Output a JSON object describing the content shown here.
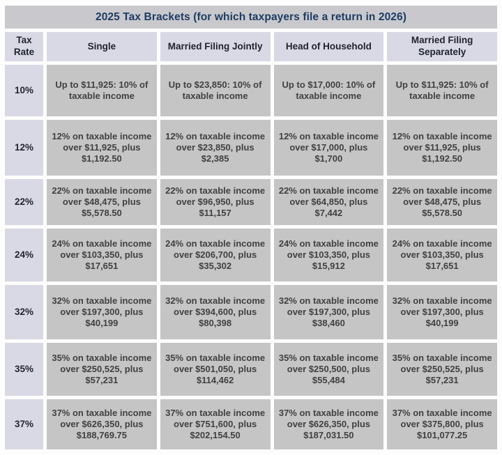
{
  "title": "2025 Tax Brackets (for which taxpayers file a return in 2026)",
  "colors": {
    "title_bar_bg": "#c9c9cd",
    "title_text": "#1d3c63",
    "header_bg": "#d9d9e6",
    "data_cell_bg": "#c5c5c6",
    "data_text": "#414141",
    "page_bg": "#fdfdfd"
  },
  "table": {
    "headers": [
      "Tax Rate",
      "Single",
      "Married Filing Jointly",
      "Head of Household",
      "Married Filing Separately"
    ],
    "rows": [
      {
        "rate": "10%",
        "cells": [
          "Up to $11,925: 10% of taxable income",
          "Up to $23,850: 10% of taxable income",
          "Up to $17,000: 10% of taxable income",
          "Up to $11,925: 10% of taxable income"
        ]
      },
      {
        "rate": "12%",
        "cells": [
          "12% on taxable income over $11,925, plus $1,192.50",
          "12% on taxable income over $23,850, plus $2,385",
          "12% on taxable income over $17,000, plus $1,700",
          "12% on taxable income over $11,925, plus $1,192.50"
        ]
      },
      {
        "rate": "22%",
        "cells": [
          "22% on taxable income over $48,475, plus $5,578.50",
          "22% on taxable income over $96,950, plus $11,157",
          "22% on taxable income over $64,850, plus $7,442",
          "22% on taxable income over $48,475, plus $5,578.50"
        ]
      },
      {
        "rate": "24%",
        "cells": [
          "24% on taxable income over $103,350, plus $17,651",
          "24% on taxable income over $206,700, plus $35,302",
          "24% on taxable income over $103,350, plus $15,912",
          "24% on taxable income over $103,350, plus $17,651"
        ]
      },
      {
        "rate": "32%",
        "cells": [
          "32% on taxable income over $197,300, plus $40,199",
          "32% on taxable income over $394,600, plus $80,398",
          "32% on taxable income over $197,300, plus $38,460",
          "32% on taxable income over $197,300, plus $40,199"
        ]
      },
      {
        "rate": "35%",
        "cells": [
          "35% on taxable income over $250,525, plus $57,231",
          "35% on taxable income over $501,050, plus $114,462",
          "35% on taxable income over $250,500, plus $55,484",
          "35% on taxable income over $250,525, plus $57,231"
        ]
      },
      {
        "rate": "37%",
        "cells": [
          "37% on taxable income over $626,350, plus $188,769.75",
          "37% on taxable income over $751,600, plus $202,154.50",
          "37% on taxable income over $626,350, plus $187,031.50",
          "37% on taxable income over $375,800, plus $101,077.25"
        ]
      }
    ]
  },
  "chart_data": {
    "type": "table",
    "title": "2025 Tax Brackets (for which taxpayers file a return in 2026)",
    "columns": [
      "Tax Rate",
      "Single",
      "Married Filing Jointly",
      "Head of Household",
      "Married Filing Separately"
    ],
    "rows": [
      [
        "10%",
        "Up to $11,925: 10% of taxable income",
        "Up to $23,850: 10% of taxable income",
        "Up to $17,000: 10% of taxable income",
        "Up to $11,925: 10% of taxable income"
      ],
      [
        "12%",
        "12% on taxable income over $11,925, plus $1,192.50",
        "12% on taxable income over $23,850, plus $2,385",
        "12% on taxable income over $17,000, plus $1,700",
        "12% on taxable income over $11,925, plus $1,192.50"
      ],
      [
        "22%",
        "22% on taxable income over $48,475, plus $5,578.50",
        "22% on taxable income over $96,950, plus $11,157",
        "22% on taxable income over $64,850, plus $7,442",
        "22% on taxable income over $48,475, plus $5,578.50"
      ],
      [
        "24%",
        "24% on taxable income over $103,350, plus $17,651",
        "24% on taxable income over $206,700, plus $35,302",
        "24% on taxable income over $103,350, plus $15,912",
        "24% on taxable income over $103,350, plus $17,651"
      ],
      [
        "32%",
        "32% on taxable income over $197,300, plus $40,199",
        "32% on taxable income over $394,600, plus $80,398",
        "32% on taxable income over $197,300, plus $38,460",
        "32% on taxable income over $197,300, plus $40,199"
      ],
      [
        "35%",
        "35% on taxable income over $250,525, plus $57,231",
        "35% on taxable income over $501,050, plus $114,462",
        "35% on taxable income over $250,500, plus $55,484",
        "35% on taxable income over $250,525, plus $57,231"
      ],
      [
        "37%",
        "37% on taxable income over $626,350, plus $188,769.75",
        "37% on taxable income over $751,600, plus $202,154.50",
        "37% on taxable income over $626,350, plus $187,031.50",
        "37% on taxable income over $375,800, plus $101,077.25"
      ]
    ]
  }
}
